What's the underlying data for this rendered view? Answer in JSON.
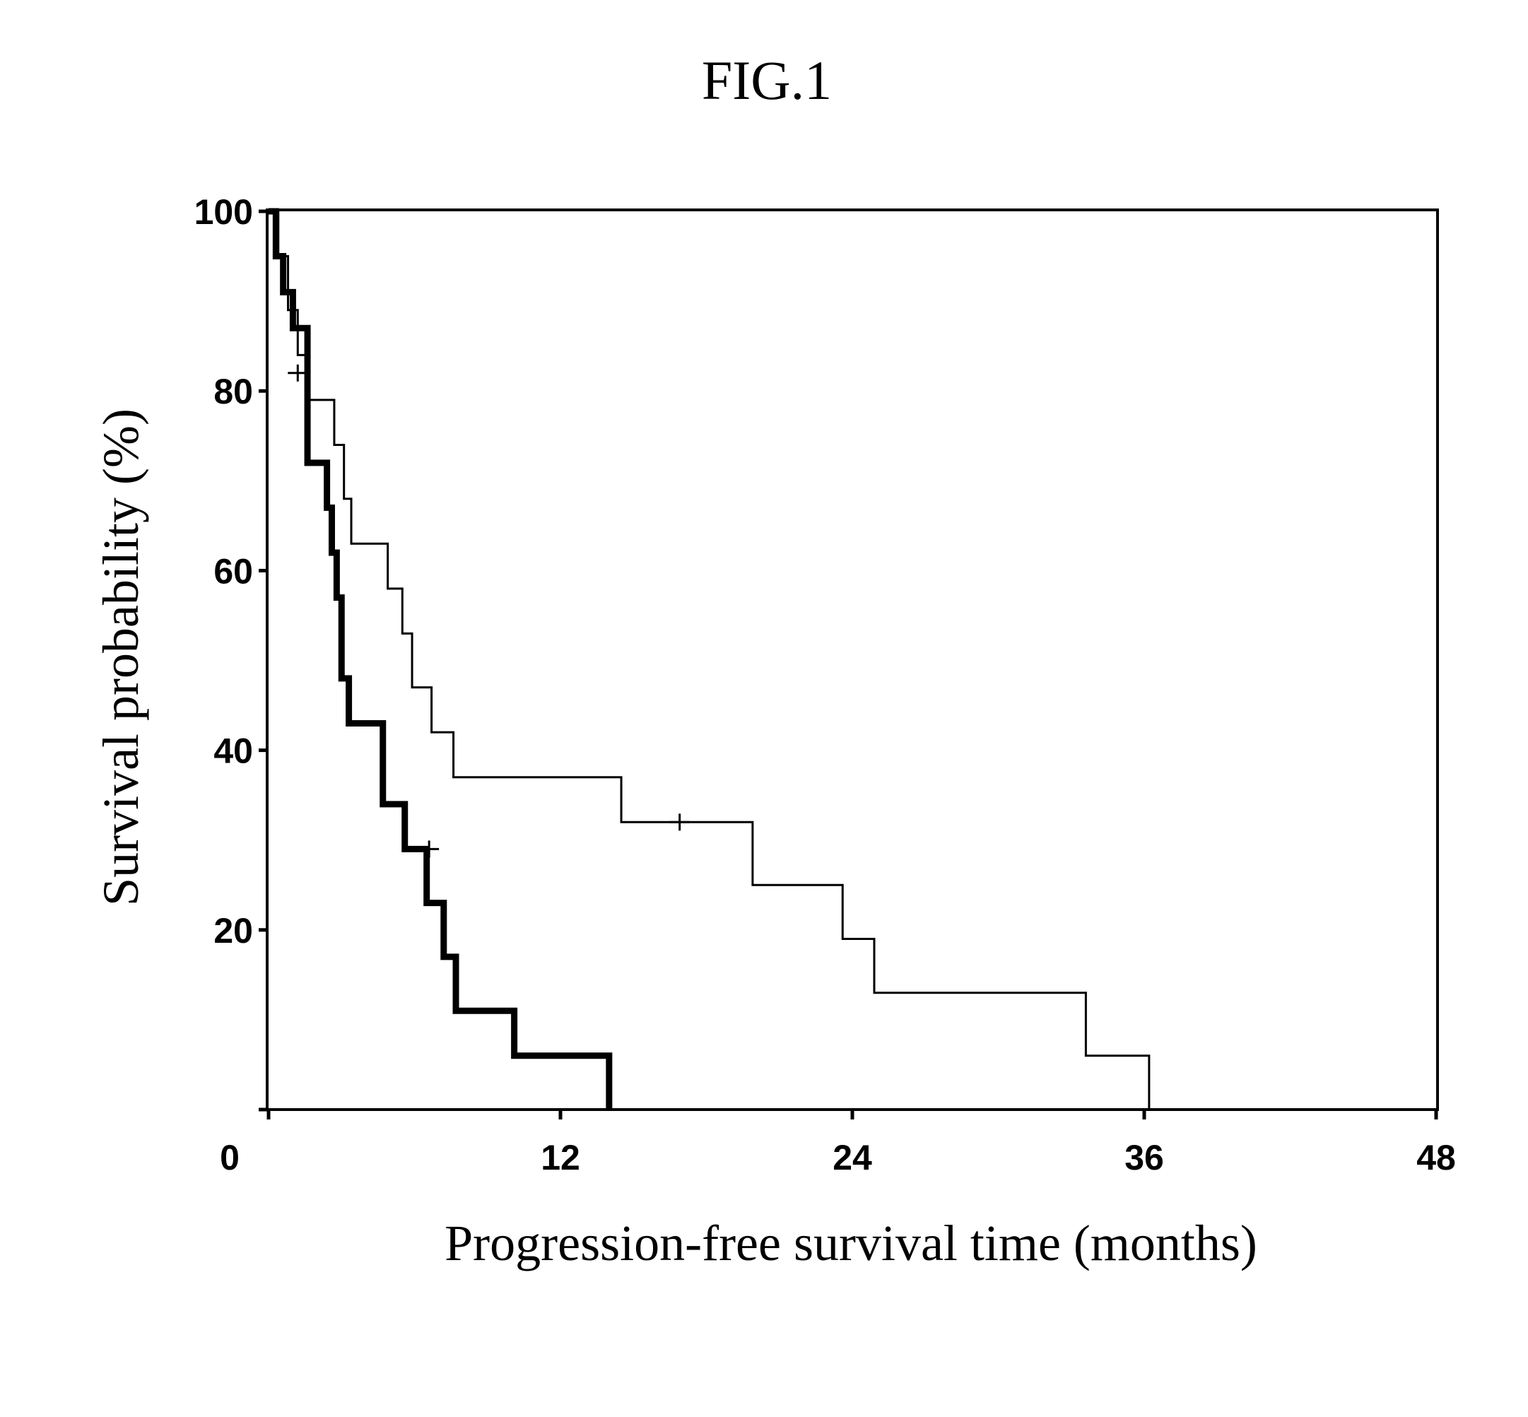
{
  "figure": {
    "title": "FIG.1"
  },
  "chart_data": {
    "type": "line",
    "step": true,
    "title": "",
    "xlabel": "Progression-free survival time (months)",
    "ylabel": "Survival probability (%)",
    "xlim": [
      0,
      48
    ],
    "ylim": [
      0,
      100
    ],
    "xticks": [
      "0",
      "12",
      "24",
      "36",
      "48"
    ],
    "yticks": [
      "100",
      "80",
      "60",
      "40",
      "20"
    ],
    "grid": false,
    "legend": "none",
    "series": [
      {
        "style": "thick",
        "color": "#000000",
        "x": [
          0,
          0.3,
          0.6,
          1.0,
          1.6,
          2.4,
          2.6,
          2.8,
          3.0,
          3.3,
          4.7,
          5.6,
          6.5,
          7.2,
          7.7,
          10.1,
          11.9,
          14.0
        ],
        "y": [
          100,
          95,
          91,
          87,
          72,
          67,
          62,
          57,
          48,
          43,
          34,
          29,
          23,
          17,
          11,
          6,
          6,
          0
        ],
        "censored": [
          {
            "x": 6.6,
            "y": 29
          }
        ]
      },
      {
        "style": "thin",
        "color": "#000000",
        "x": [
          0,
          0.4,
          0.8,
          1.2,
          1.6,
          2.7,
          3.1,
          3.4,
          4.9,
          5.5,
          5.9,
          6.7,
          7.6,
          14.5,
          19.9,
          23.6,
          24.9,
          33.6,
          36.2
        ],
        "y": [
          100,
          95,
          89,
          84,
          79,
          74,
          68,
          63,
          58,
          53,
          47,
          42,
          37,
          32,
          25,
          19,
          13,
          6,
          0
        ],
        "censored": [
          {
            "x": 1.2,
            "y": 82
          },
          {
            "x": 16.9,
            "y": 32
          }
        ]
      }
    ]
  }
}
